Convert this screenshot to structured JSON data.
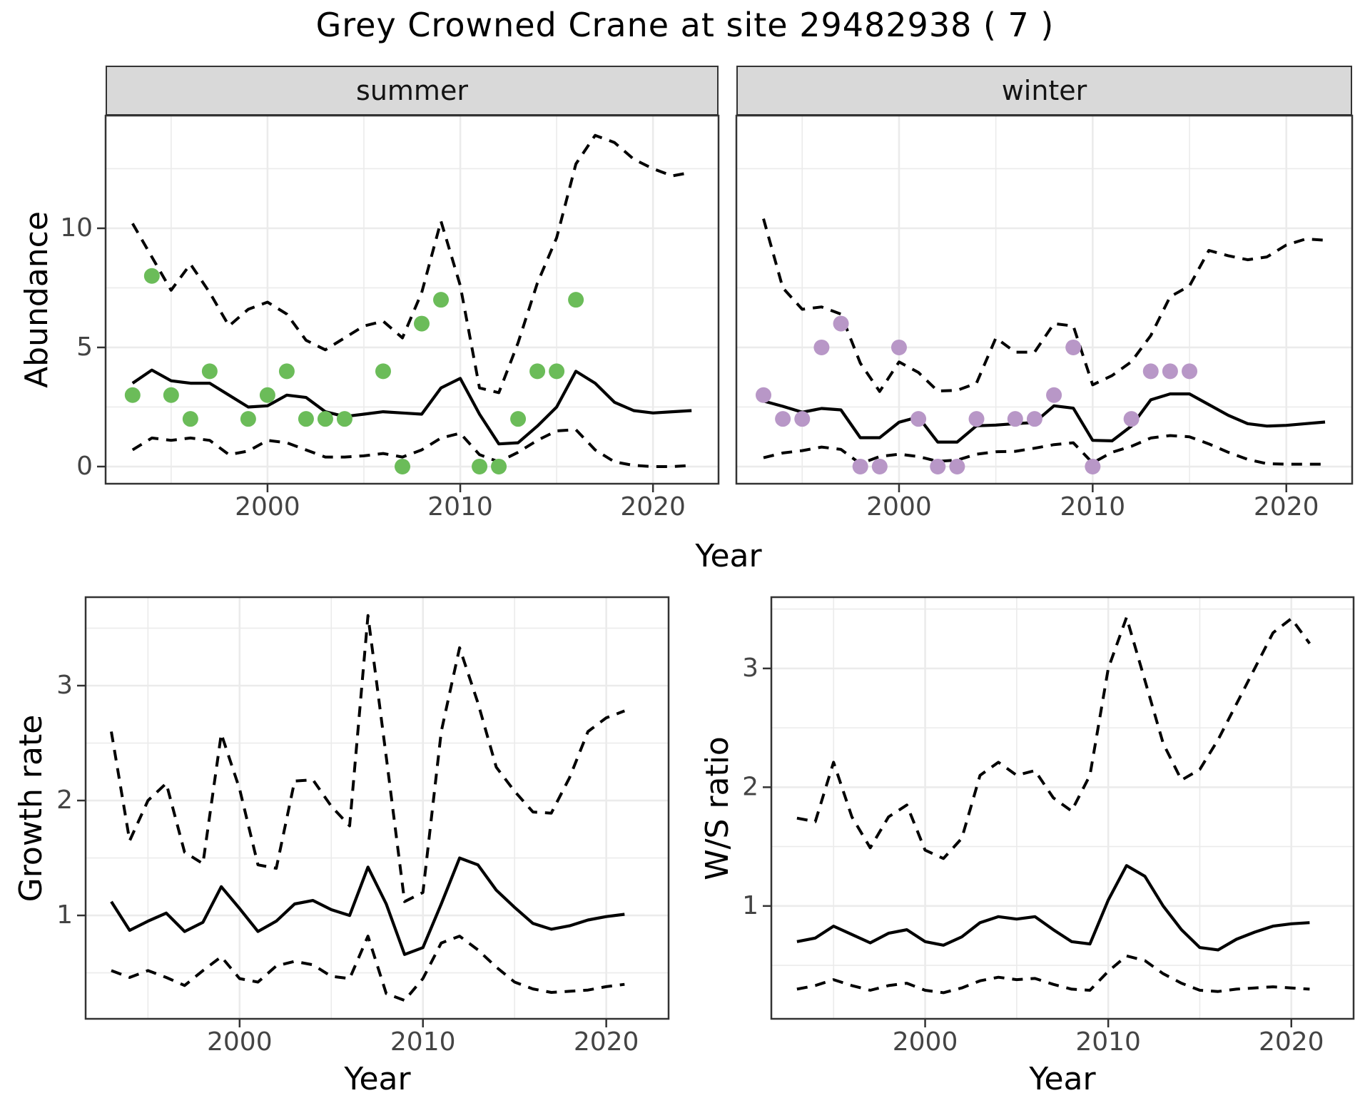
{
  "title": "Grey Crowned Crane at site 29482938 ( 7 )",
  "facets": [
    "summer",
    "winter"
  ],
  "labels": {
    "abundance": "Abundance",
    "year": "Year",
    "growth": "Growth rate",
    "ws": "W/S ratio"
  },
  "colors": {
    "summer_points": "#6bbc59",
    "winter_points": "#b897c7",
    "fit_line": "#000000",
    "ci_line": "#000000",
    "grid": "#ebebeb",
    "strip_bg": "#d9d9d9",
    "panel_border": "#333333",
    "tick_text": "#444444"
  },
  "chart_data": [
    {
      "id": "abundance-summer",
      "type": "line",
      "facet": "summer",
      "ylabel": "Abundance",
      "xlabel": "Year",
      "x_ticks": [
        2000,
        2010,
        2020
      ],
      "y_ticks": [
        0,
        5,
        10
      ],
      "x_minor": [
        1995,
        2005,
        2015
      ],
      "y_minor": [
        2.5,
        7.5,
        12.5
      ],
      "xlim": [
        1991.6,
        2023.4
      ],
      "ylim": [
        -0.72,
        14.73
      ],
      "show_y_tick_labels": true,
      "years": [
        1993,
        1994,
        1995,
        1996,
        1997,
        1998,
        1999,
        2000,
        2001,
        2002,
        2003,
        2004,
        2005,
        2006,
        2007,
        2008,
        2009,
        2010,
        2011,
        2012,
        2013,
        2014,
        2015,
        2016,
        2017,
        2018,
        2019,
        2020,
        2021,
        2022
      ],
      "fit": [
        3.5,
        4.05,
        3.6,
        3.5,
        3.5,
        3.0,
        2.5,
        2.55,
        3.0,
        2.9,
        2.3,
        2.1,
        2.2,
        2.3,
        2.25,
        2.2,
        3.3,
        3.7,
        2.2,
        0.95,
        1.0,
        1.7,
        2.5,
        4.0,
        3.5,
        2.7,
        2.35,
        2.25,
        2.3,
        2.35
      ],
      "upper": [
        10.2,
        8.8,
        7.4,
        8.5,
        7.3,
        5.9,
        6.6,
        6.9,
        6.4,
        5.3,
        4.9,
        5.4,
        5.9,
        6.1,
        5.4,
        7.3,
        10.3,
        7.6,
        3.3,
        3.1,
        5.2,
        7.7,
        9.6,
        12.7,
        13.9,
        13.6,
        12.9,
        12.5,
        12.2,
        12.35
      ],
      "lower": [
        0.7,
        1.2,
        1.1,
        1.2,
        1.1,
        0.5,
        0.65,
        1.1,
        1.0,
        0.7,
        0.4,
        0.4,
        0.45,
        0.55,
        0.4,
        0.7,
        1.2,
        1.4,
        0.5,
        0.2,
        0.6,
        1.1,
        1.5,
        1.55,
        0.7,
        0.2,
        0.05,
        0.0,
        0.0,
        0.05
      ],
      "points_x": [
        1993,
        1994,
        1995,
        1996,
        1997,
        1999,
        2000,
        2001,
        2002,
        2003,
        2004,
        2006,
        2007,
        2008,
        2009,
        2011,
        2012,
        2013,
        2014,
        2015,
        2016
      ],
      "points_y": [
        3,
        8,
        3,
        2,
        4,
        2,
        3,
        4,
        2,
        2,
        2,
        4,
        0,
        6,
        7,
        0,
        0,
        2,
        4,
        4,
        7
      ]
    },
    {
      "id": "abundance-winter",
      "type": "line",
      "facet": "winter",
      "ylabel": "Abundance",
      "xlabel": "Year",
      "x_ticks": [
        2000,
        2010,
        2020
      ],
      "y_ticks": [
        0,
        5,
        10
      ],
      "x_minor": [
        1995,
        2005,
        2015
      ],
      "y_minor": [
        2.5,
        7.5,
        12.5
      ],
      "xlim": [
        1991.6,
        2023.4
      ],
      "ylim": [
        -0.72,
        14.73
      ],
      "show_y_tick_labels": false,
      "years": [
        1993,
        1994,
        1995,
        1996,
        1997,
        1998,
        1999,
        2000,
        2001,
        2002,
        2003,
        2004,
        2005,
        2006,
        2007,
        2008,
        2009,
        2010,
        2011,
        2012,
        2013,
        2014,
        2015,
        2016,
        2017,
        2018,
        2019,
        2020,
        2021,
        2022
      ],
      "fit": [
        2.75,
        2.53,
        2.28,
        2.44,
        2.38,
        1.21,
        1.21,
        1.86,
        2.08,
        1.03,
        1.03,
        1.71,
        1.74,
        1.8,
        1.85,
        2.55,
        2.45,
        1.1,
        1.08,
        1.7,
        2.8,
        3.05,
        3.05,
        2.6,
        2.15,
        1.8,
        1.7,
        1.73,
        1.8,
        1.87
      ],
      "upper": [
        10.4,
        7.5,
        6.6,
        6.7,
        6.4,
        4.34,
        3.15,
        4.39,
        3.95,
        3.17,
        3.2,
        3.5,
        5.4,
        4.8,
        4.8,
        6.0,
        5.9,
        3.43,
        3.82,
        4.4,
        5.5,
        7.13,
        7.58,
        9.07,
        8.85,
        8.68,
        8.8,
        9.3,
        9.55,
        9.5
      ],
      "lower": [
        0.37,
        0.57,
        0.67,
        0.82,
        0.72,
        0.12,
        0.42,
        0.52,
        0.42,
        0.22,
        0.27,
        0.52,
        0.62,
        0.64,
        0.77,
        0.92,
        1.0,
        0.15,
        0.6,
        0.85,
        1.2,
        1.3,
        1.25,
        0.95,
        0.6,
        0.3,
        0.12,
        0.1,
        0.1,
        0.1
      ],
      "points_x": [
        1993,
        1994,
        1995,
        1996,
        1997,
        1998,
        1999,
        2000,
        2001,
        2002,
        2003,
        2004,
        2006,
        2007,
        2008,
        2009,
        2010,
        2012,
        2013,
        2014,
        2015
      ],
      "points_y": [
        3,
        2,
        2,
        5,
        6,
        0,
        0,
        5,
        2,
        0,
        0,
        2,
        2,
        2,
        3,
        5,
        0,
        2,
        4,
        4,
        4
      ]
    },
    {
      "id": "growth-rate",
      "type": "line",
      "facet": null,
      "ylabel": "Growth rate",
      "xlabel": "Year",
      "x_ticks": [
        2000,
        2010,
        2020
      ],
      "y_ticks": [
        1,
        2,
        3
      ],
      "x_minor": [
        1995,
        2005,
        2015
      ],
      "y_minor": [
        0.5,
        1.5,
        2.5,
        3.5
      ],
      "xlim": [
        1991.6,
        2023.4
      ],
      "ylim": [
        0.1,
        3.77
      ],
      "show_y_tick_labels": true,
      "years": [
        1993,
        1994,
        1995,
        1996,
        1997,
        1998,
        1999,
        2000,
        2001,
        2002,
        2003,
        2004,
        2005,
        2006,
        2007,
        2008,
        2009,
        2010,
        2011,
        2012,
        2013,
        2014,
        2015,
        2016,
        2017,
        2018,
        2019,
        2020,
        2021
      ],
      "fit": [
        1.12,
        0.87,
        0.95,
        1.02,
        0.86,
        0.94,
        1.25,
        1.06,
        0.86,
        0.95,
        1.1,
        1.13,
        1.05,
        1.0,
        1.42,
        1.1,
        0.66,
        0.72,
        1.1,
        1.5,
        1.44,
        1.22,
        1.07,
        0.93,
        0.88,
        0.91,
        0.96,
        0.99,
        1.01
      ],
      "upper": [
        2.6,
        1.65,
        2.0,
        2.15,
        1.55,
        1.45,
        2.58,
        2.1,
        1.44,
        1.41,
        2.17,
        2.18,
        1.95,
        1.78,
        3.61,
        2.38,
        1.12,
        1.2,
        2.6,
        3.33,
        2.85,
        2.29,
        2.08,
        1.9,
        1.89,
        2.2,
        2.6,
        2.72,
        2.78
      ],
      "lower": [
        0.52,
        0.46,
        0.52,
        0.46,
        0.39,
        0.52,
        0.64,
        0.45,
        0.42,
        0.56,
        0.6,
        0.57,
        0.47,
        0.45,
        0.82,
        0.32,
        0.26,
        0.45,
        0.76,
        0.82,
        0.7,
        0.55,
        0.42,
        0.36,
        0.33,
        0.34,
        0.35,
        0.38,
        0.4
      ],
      "points_x": [],
      "points_y": []
    },
    {
      "id": "ws-ratio",
      "type": "line",
      "facet": null,
      "ylabel": "W/S ratio",
      "xlabel": "Year",
      "x_ticks": [
        2000,
        2010,
        2020
      ],
      "y_ticks": [
        1,
        2,
        3
      ],
      "x_minor": [
        1995,
        2005,
        2015
      ],
      "y_minor": [
        0.5,
        1.5,
        2.5,
        3.5
      ],
      "xlim": [
        1991.6,
        2023.4
      ],
      "ylim": [
        0.05,
        3.6
      ],
      "show_y_tick_labels": true,
      "years": [
        1993,
        1994,
        1995,
        1996,
        1997,
        1998,
        1999,
        2000,
        2001,
        2002,
        2003,
        2004,
        2005,
        2006,
        2007,
        2008,
        2009,
        2010,
        2011,
        2012,
        2013,
        2014,
        2015,
        2016,
        2017,
        2018,
        2019,
        2020,
        2021
      ],
      "fit": [
        0.7,
        0.73,
        0.83,
        0.76,
        0.69,
        0.77,
        0.8,
        0.7,
        0.67,
        0.74,
        0.86,
        0.91,
        0.89,
        0.91,
        0.8,
        0.7,
        0.68,
        1.05,
        1.34,
        1.25,
        1.0,
        0.8,
        0.65,
        0.63,
        0.72,
        0.78,
        0.83,
        0.85,
        0.86
      ],
      "upper": [
        1.74,
        1.71,
        2.21,
        1.75,
        1.49,
        1.75,
        1.85,
        1.47,
        1.4,
        1.57,
        2.1,
        2.21,
        2.1,
        2.14,
        1.91,
        1.8,
        2.1,
        3.0,
        3.43,
        2.9,
        2.37,
        2.06,
        2.15,
        2.4,
        2.7,
        3.0,
        3.3,
        3.42,
        3.21
      ],
      "lower": [
        0.3,
        0.33,
        0.38,
        0.33,
        0.29,
        0.33,
        0.35,
        0.29,
        0.27,
        0.31,
        0.37,
        0.4,
        0.38,
        0.39,
        0.34,
        0.3,
        0.29,
        0.45,
        0.58,
        0.54,
        0.43,
        0.35,
        0.29,
        0.28,
        0.3,
        0.31,
        0.32,
        0.31,
        0.3
      ],
      "points_x": [],
      "points_y": []
    }
  ]
}
